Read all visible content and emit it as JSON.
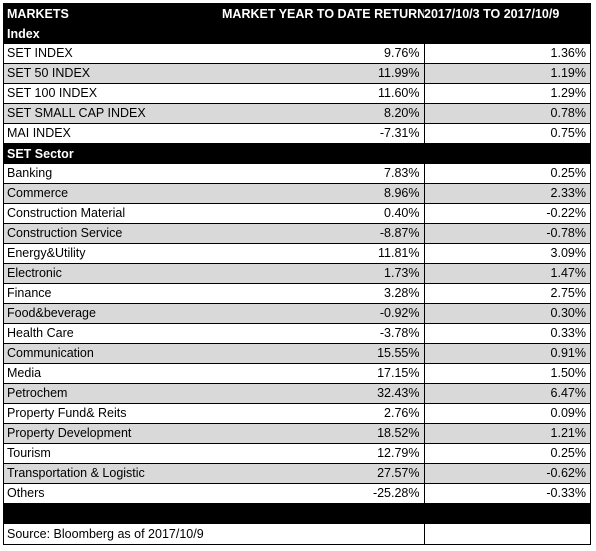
{
  "header": {
    "col1": "MARKETS",
    "col2": "MARKET YEAR TO DATE RETURN",
    "col3": "2017/10/3 TO 2017/10/9"
  },
  "index_section": "Index",
  "index_rows": [
    {
      "name": "SET INDEX",
      "ytd": "9.76%",
      "week": "1.36%"
    },
    {
      "name": "SET 50 INDEX",
      "ytd": "11.99%",
      "week": "1.19%"
    },
    {
      "name": "SET 100 INDEX",
      "ytd": "11.60%",
      "week": "1.29%"
    },
    {
      "name": "SET SMALL CAP INDEX",
      "ytd": "8.20%",
      "week": "0.78%"
    },
    {
      "name": "MAI INDEX",
      "ytd": "-7.31%",
      "week": "0.75%"
    }
  ],
  "sector_section": "SET Sector",
  "sector_rows": [
    {
      "name": "Banking",
      "ytd": "7.83%",
      "week": "0.25%"
    },
    {
      "name": "Commerce",
      "ytd": "8.96%",
      "week": "2.33%"
    },
    {
      "name": "Construction Material",
      "ytd": "0.40%",
      "week": "-0.22%"
    },
    {
      "name": "Construction Service",
      "ytd": "-8.87%",
      "week": "-0.78%"
    },
    {
      "name": "Energy&Utility",
      "ytd": "11.81%",
      "week": "3.09%"
    },
    {
      "name": "Electronic",
      "ytd": "1.73%",
      "week": "1.47%"
    },
    {
      "name": "Finance",
      "ytd": "3.28%",
      "week": "2.75%"
    },
    {
      "name": "Food&beverage",
      "ytd": "-0.92%",
      "week": "0.30%"
    },
    {
      "name": "Health Care",
      "ytd": "-3.78%",
      "week": "0.33%"
    },
    {
      "name": "Communication",
      "ytd": "15.55%",
      "week": "0.91%"
    },
    {
      "name": "Media",
      "ytd": "17.15%",
      "week": "1.50%"
    },
    {
      "name": "Petrochem",
      "ytd": "32.43%",
      "week": "6.47%"
    },
    {
      "name": "Property Fund& Reits",
      "ytd": "2.76%",
      "week": "0.09%"
    },
    {
      "name": "Property Development",
      "ytd": "18.52%",
      "week": "1.21%"
    },
    {
      "name": "Tourism",
      "ytd": "12.79%",
      "week": "0.25%"
    },
    {
      "name": "Transportation & Logistic",
      "ytd": "27.57%",
      "week": "-0.62%"
    },
    {
      "name": "Others",
      "ytd": "-25.28%",
      "week": "-0.33%"
    }
  ],
  "source": "Source: Bloomberg as of 2017/10/9"
}
